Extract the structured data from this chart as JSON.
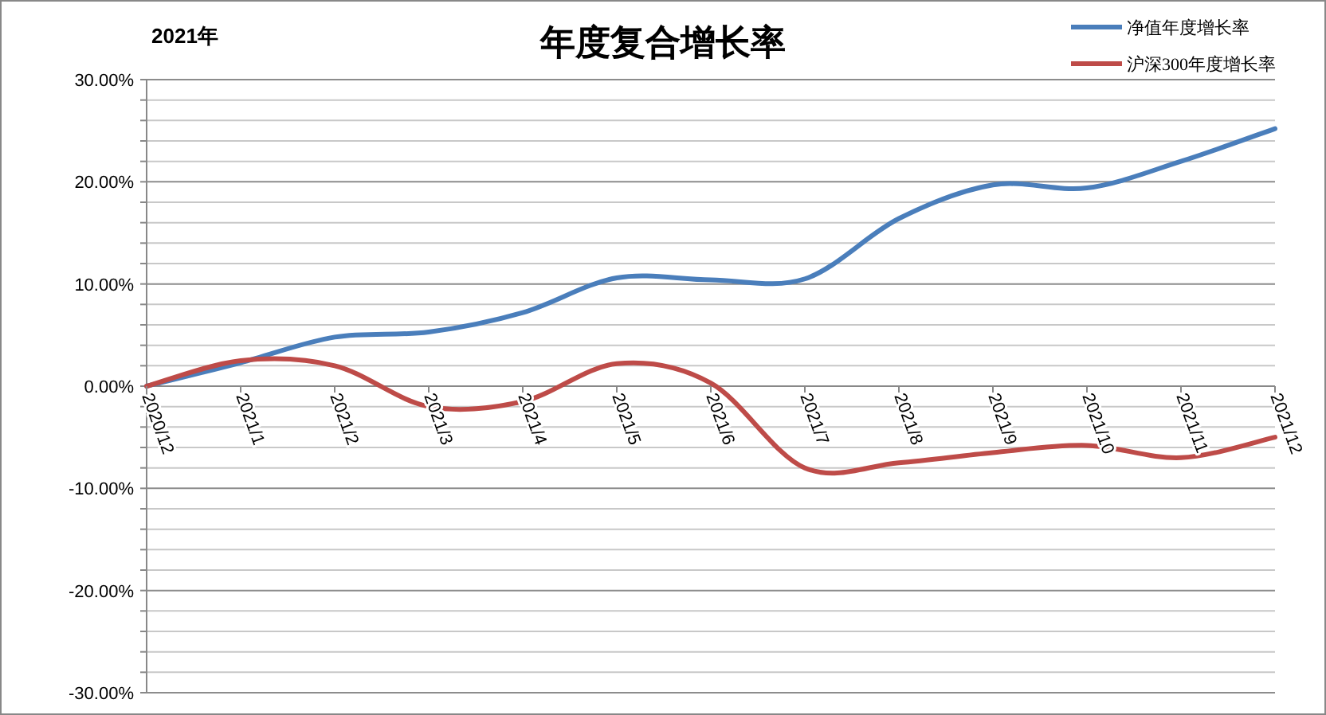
{
  "chart_data": {
    "type": "line",
    "title": "年度复合增长率",
    "subtitle": "2021年",
    "categories": [
      "2020/12",
      "2021/1",
      "2021/2",
      "2021/3",
      "2021/4",
      "2021/5",
      "2021/6",
      "2021/7",
      "2021/8",
      "2021/9",
      "2021/10",
      "2021/11",
      "2021/12"
    ],
    "series": [
      {
        "name": "净值年度增长率",
        "color": "#4a7ebb",
        "values": [
          0,
          2.3,
          4.8,
          5.3,
          7.2,
          10.6,
          10.4,
          10.5,
          16.4,
          19.7,
          19.4,
          22.0,
          25.2
        ]
      },
      {
        "name": "沪深300年度增长率",
        "color": "#be4b48",
        "values": [
          0,
          2.5,
          2.0,
          -2.0,
          -1.5,
          2.2,
          0.3,
          -8.0,
          -7.5,
          -6.5,
          -5.8,
          -7.0,
          -5.0
        ]
      }
    ],
    "ylim": [
      -30,
      30
    ],
    "yticks": [
      {
        "value": -30,
        "label": "-30.00%"
      },
      {
        "value": -28,
        "label": null
      },
      {
        "value": -26,
        "label": null
      },
      {
        "value": -24,
        "label": null
      },
      {
        "value": -22,
        "label": null
      },
      {
        "value": -20,
        "label": "-20.00%"
      },
      {
        "value": -18,
        "label": null
      },
      {
        "value": -16,
        "label": null
      },
      {
        "value": -14,
        "label": null
      },
      {
        "value": -12,
        "label": null
      },
      {
        "value": -10,
        "label": "-10.00%"
      },
      {
        "value": -8,
        "label": null
      },
      {
        "value": -6,
        "label": null
      },
      {
        "value": -4,
        "label": null
      },
      {
        "value": -2,
        "label": null
      },
      {
        "value": 0,
        "label": "0.00%"
      },
      {
        "value": 2,
        "label": null
      },
      {
        "value": 4,
        "label": null
      },
      {
        "value": 6,
        "label": null
      },
      {
        "value": 8,
        "label": null
      },
      {
        "value": 10,
        "label": "10.00%"
      },
      {
        "value": 12,
        "label": null
      },
      {
        "value": 14,
        "label": null
      },
      {
        "value": 16,
        "label": null
      },
      {
        "value": 18,
        "label": null
      },
      {
        "value": 20,
        "label": "20.00%"
      },
      {
        "value": 22,
        "label": null
      },
      {
        "value": 24,
        "label": null
      },
      {
        "value": 26,
        "label": null
      },
      {
        "value": 28,
        "label": null
      },
      {
        "value": 30,
        "label": "30.00%"
      }
    ],
    "grid": "y",
    "legend": "top right",
    "marker": "none",
    "line_style": "solid"
  }
}
